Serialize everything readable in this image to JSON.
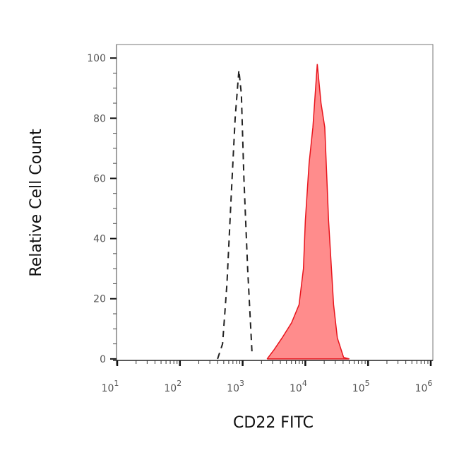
{
  "chart_data": {
    "type": "area",
    "title": "",
    "xlabel": "CD22 FITC",
    "ylabel": "Relative Cell Count",
    "x_scale": "log",
    "xlim": [
      10,
      1000000
    ],
    "ylim": [
      -0.5,
      104.5
    ],
    "x_ticks": [
      {
        "base": "10",
        "exp": "1",
        "value": 10
      },
      {
        "base": "10",
        "exp": "2",
        "value": 100
      },
      {
        "base": "10",
        "exp": "3",
        "value": 1000
      },
      {
        "base": "10",
        "exp": "4",
        "value": 10000
      },
      {
        "base": "10",
        "exp": "5",
        "value": 100000
      },
      {
        "base": "10",
        "exp": "6",
        "value": 1000000
      }
    ],
    "y_ticks": [
      "0",
      "20",
      "40",
      "60",
      "80",
      "100"
    ],
    "y_tick_values": [
      0,
      20,
      40,
      60,
      80,
      100
    ],
    "grid": false,
    "series": [
      {
        "style": "dashed-outline",
        "color": "#222222",
        "points": [
          [
            398,
            0
          ],
          [
            479,
            5
          ],
          [
            562,
            25
          ],
          [
            661,
            55
          ],
          [
            759,
            80
          ],
          [
            871,
            96
          ],
          [
            955,
            88
          ],
          [
            1047,
            60
          ],
          [
            1202,
            30
          ],
          [
            1413,
            2
          ]
        ]
      },
      {
        "style": "filled",
        "color": "#e8141c",
        "fill": "#ff8c8c",
        "points": [
          [
            2455,
            0
          ],
          [
            3162,
            3
          ],
          [
            4266,
            7
          ],
          [
            6026,
            12
          ],
          [
            7943,
            18
          ],
          [
            9333,
            30
          ],
          [
            10000,
            46
          ],
          [
            11482,
            65
          ],
          [
            13183,
            77
          ],
          [
            15488,
            98
          ],
          [
            17783,
            85
          ],
          [
            20417,
            77
          ],
          [
            23442,
            46
          ],
          [
            28184,
            18
          ],
          [
            32359,
            7
          ],
          [
            40738,
            0.5
          ],
          [
            50119,
            0
          ]
        ]
      }
    ]
  }
}
